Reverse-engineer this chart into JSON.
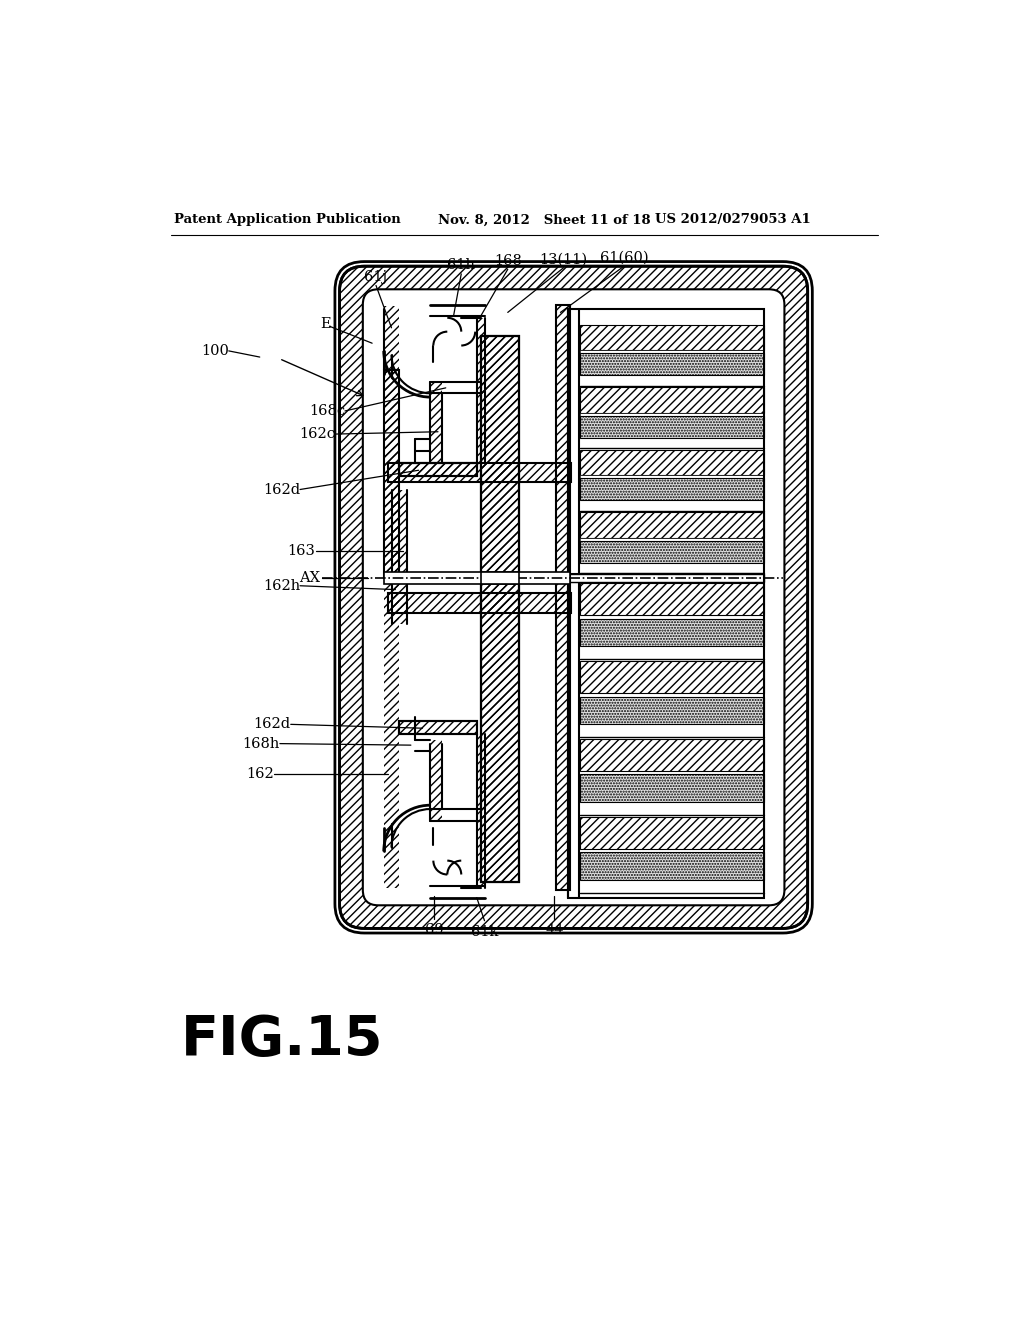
{
  "header_left": "Patent Application Publication",
  "header_center": "Nov. 8, 2012   Sheet 11 of 18",
  "header_right": "US 2012/0279053 A1",
  "figure_label": "FIG.15",
  "bg": "#ffffff",
  "black": "#000000"
}
